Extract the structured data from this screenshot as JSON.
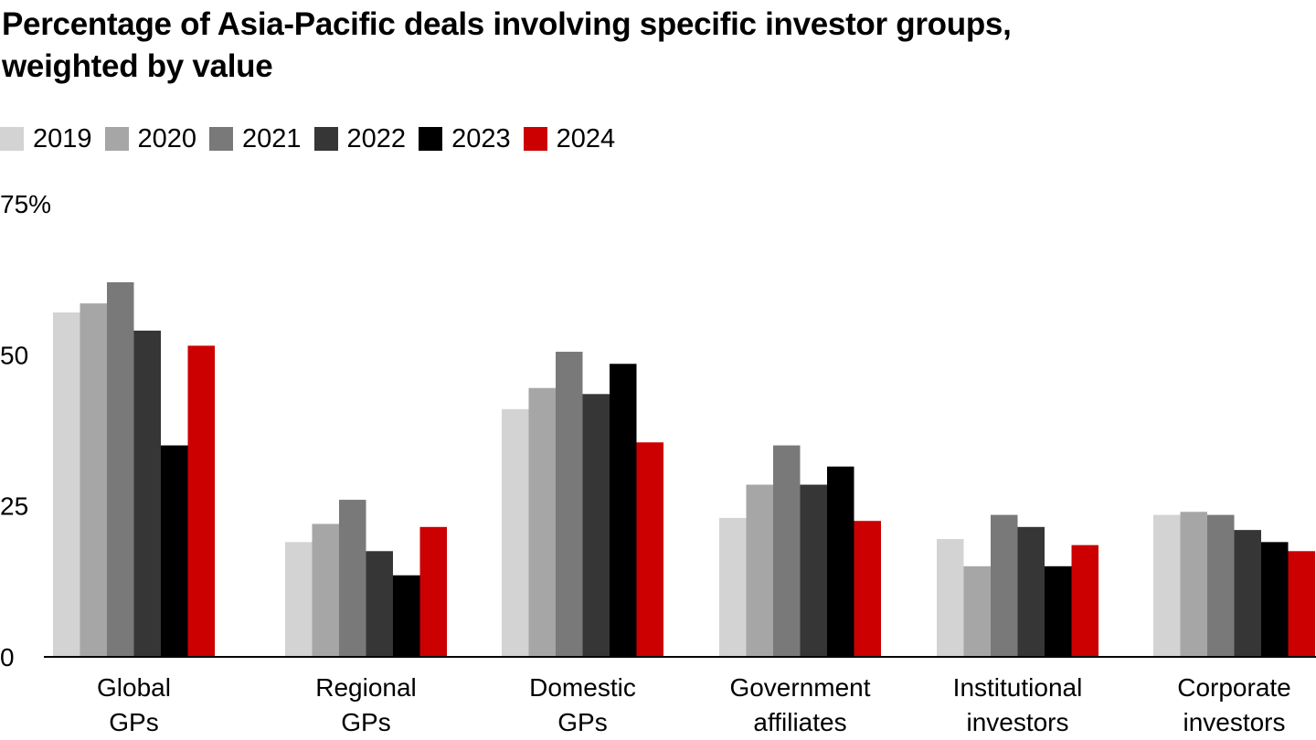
{
  "chart_data": {
    "type": "bar",
    "title_lines": [
      "Percentage of Asia-Pacific deals involving specific investor groups,",
      "weighted by value"
    ],
    "categories": [
      [
        "Global",
        "GPs"
      ],
      [
        "Regional",
        "GPs"
      ],
      [
        "Domestic",
        "GPs"
      ],
      [
        "Government",
        "affiliates"
      ],
      [
        "Institutional",
        "investors"
      ],
      [
        "Corporate",
        "investors"
      ]
    ],
    "series": [
      {
        "name": "2019",
        "color": "#d3d3d3",
        "values": [
          57,
          19,
          41,
          23,
          19.5,
          23.5
        ]
      },
      {
        "name": "2020",
        "color": "#a6a6a6",
        "values": [
          58.5,
          22,
          44.5,
          28.5,
          15,
          24
        ]
      },
      {
        "name": "2021",
        "color": "#797979",
        "values": [
          62,
          26,
          50.5,
          35,
          23.5,
          23.5
        ]
      },
      {
        "name": "2022",
        "color": "#363636",
        "values": [
          54,
          17.5,
          43.5,
          28.5,
          21.5,
          21
        ]
      },
      {
        "name": "2023",
        "color": "#000000",
        "values": [
          35,
          13.5,
          48.5,
          31.5,
          15,
          19
        ]
      },
      {
        "name": "2024",
        "color": "#cc0000",
        "values": [
          51.5,
          21.5,
          35.5,
          22.5,
          18.5,
          17.5
        ]
      }
    ],
    "yticks": [
      "75%",
      "50",
      "25",
      "0"
    ],
    "ytick_values": [
      75,
      50,
      25,
      0
    ],
    "ylim": [
      0,
      75
    ],
    "xlabel": "",
    "ylabel": "",
    "grid": false,
    "legend_position": "top-left"
  }
}
